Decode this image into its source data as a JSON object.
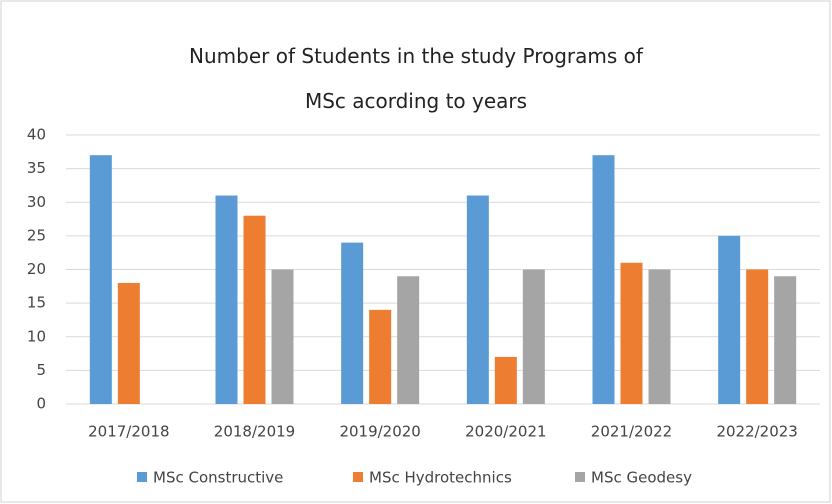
{
  "chart_data": {
    "type": "bar",
    "title": "Number of Students in the study Programs of MSc acording to years",
    "categories": [
      "2017/2018",
      "2018/2019",
      "2019/2020",
      "2020/2021",
      "2021/2022",
      "2022/2023"
    ],
    "series": [
      {
        "name": "MSc Constructive",
        "color": "#5b9bd5",
        "values": [
          37,
          31,
          24,
          31,
          37,
          25
        ]
      },
      {
        "name": "MSc Hydrotechnics",
        "color": "#ed7d31",
        "values": [
          18,
          28,
          14,
          7,
          21,
          20
        ]
      },
      {
        "name": "MSc Geodesy",
        "color": "#a5a5a5",
        "values": [
          null,
          20,
          19,
          20,
          20,
          19
        ]
      }
    ],
    "ylim": [
      0,
      40
    ],
    "yticks": [
      0,
      5,
      10,
      15,
      20,
      25,
      30,
      35,
      40
    ],
    "grid": true,
    "legend": "bottom"
  }
}
